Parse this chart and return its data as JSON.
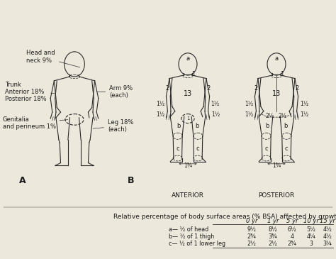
{
  "title": "Relative percentage of body surface areas (% BSA) affected by growth",
  "bg_color": "#ede8dc",
  "line_color": "#2a2a2a",
  "text_color": "#1a1a1a",
  "table_col_headers": [
    "0 yr",
    "1 yr",
    "5 yr",
    "10 yr",
    "15 yr"
  ],
  "table_row_labels": [
    "a— ½ of head",
    "b— ½ of 1 thigh",
    "c— ½ of 1 lower leg"
  ],
  "table_data": [
    [
      "9½",
      "8½",
      "6½",
      "5½",
      "4½"
    ],
    [
      "2¾",
      "3¾",
      "4",
      "4¼",
      "4½"
    ],
    [
      "2½",
      "2½",
      "2¾",
      "3",
      "3¼"
    ]
  ]
}
